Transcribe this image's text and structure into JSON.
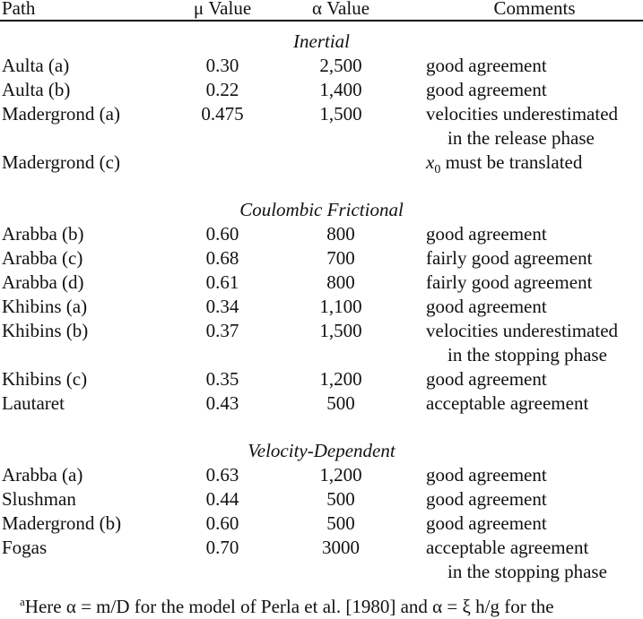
{
  "headers": {
    "path": "Path",
    "mu": "μ Value",
    "alpha": "α Value",
    "comments": "Comments"
  },
  "sections": [
    {
      "title": "Inertial",
      "rows": [
        {
          "path": "Aulta (a)",
          "mu": "0.30",
          "alpha": "2,500",
          "comment": "good agreement",
          "comment2": ""
        },
        {
          "path": "Aulta (b)",
          "mu": "0.22",
          "alpha": "1,400",
          "comment": "good agreement",
          "comment2": ""
        },
        {
          "path": "Madergrond (a)",
          "mu": "0.475",
          "alpha": "1,500",
          "comment": "velocities underestimated",
          "comment2": "in the release phase"
        },
        {
          "path": "Madergrond (c)",
          "mu": "",
          "alpha": "",
          "comment": "must be translated",
          "comment2": "",
          "comment_prefix": "x0"
        }
      ]
    },
    {
      "title": "Coulombic Frictional",
      "rows": [
        {
          "path": "Arabba (b)",
          "mu": "0.60",
          "alpha": "800",
          "comment": "good agreement",
          "comment2": ""
        },
        {
          "path": "Arabba (c)",
          "mu": "0.68",
          "alpha": "700",
          "comment": "fairly good agreement",
          "comment2": ""
        },
        {
          "path": "Arabba (d)",
          "mu": "0.61",
          "alpha": "800",
          "comment": "fairly good agreement",
          "comment2": ""
        },
        {
          "path": "Khibins (a)",
          "mu": "0.34",
          "alpha": "1,100",
          "comment": "good agreement",
          "comment2": ""
        },
        {
          "path": "Khibins (b)",
          "mu": "0.37",
          "alpha": "1,500",
          "comment": "velocities underestimated",
          "comment2": "in the stopping phase"
        },
        {
          "path": "Khibins (c)",
          "mu": "0.35",
          "alpha": "1,200",
          "comment": "good agreement",
          "comment2": ""
        },
        {
          "path": "Lautaret",
          "mu": "0.43",
          "alpha": "500",
          "comment": "acceptable agreement",
          "comment2": ""
        }
      ]
    },
    {
      "title": "Velocity-Dependent",
      "rows": [
        {
          "path": "Arabba (a)",
          "mu": "0.63",
          "alpha": "1,200",
          "comment": "good agreement",
          "comment2": ""
        },
        {
          "path": "Slushman",
          "mu": "0.44",
          "alpha": "500",
          "comment": "good agreement",
          "comment2": ""
        },
        {
          "path": "Madergrond (b)",
          "mu": "0.60",
          "alpha": "500",
          "comment": "good agreement",
          "comment2": ""
        },
        {
          "path": "Fogas",
          "mu": "0.70",
          "alpha": "3000",
          "comment": "acceptable agreement",
          "comment2": "in the stopping phase"
        }
      ]
    }
  ],
  "footnote": {
    "marker": "a",
    "text": "Here α = m/D for the model of Perla et al. [1980] and α = ξ h/g for the"
  }
}
